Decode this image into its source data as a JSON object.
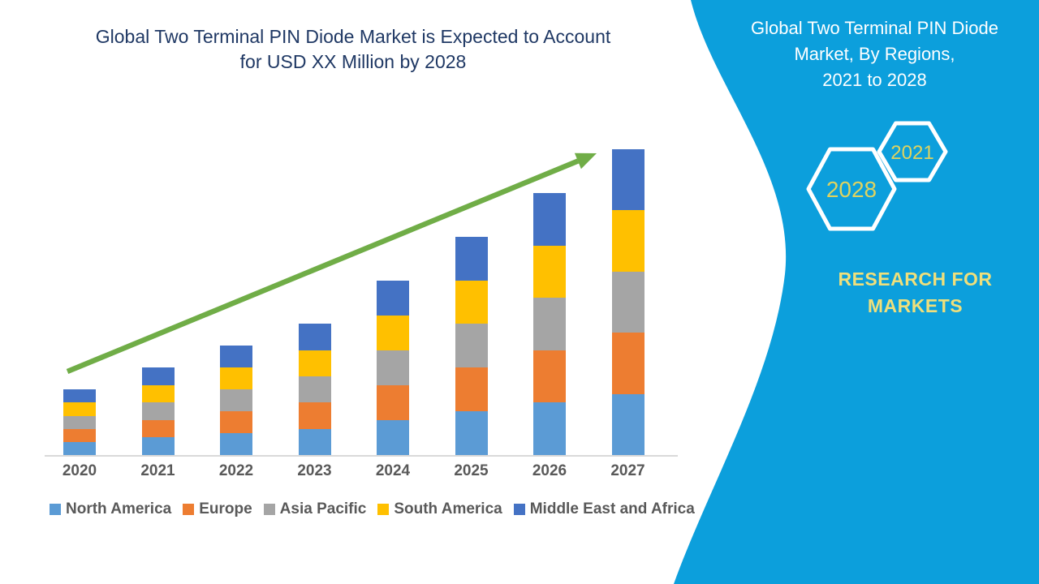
{
  "main": {
    "title_lines": [
      "Global Two Terminal PIN Diode Market is Expected to Account",
      "for USD XX Million by 2028"
    ]
  },
  "chart_data": {
    "type": "bar",
    "stacked": true,
    "title": "Global Two Terminal PIN Diode Market is Expected to Account for USD XX Million by 2028",
    "categories": [
      "2020",
      "2021",
      "2022",
      "2023",
      "2024",
      "2025",
      "2026",
      "2027"
    ],
    "series": [
      {
        "name": "North America",
        "color": "#5B9BD5",
        "values": [
          1.5,
          2,
          2.5,
          3,
          4,
          5,
          6,
          7
        ]
      },
      {
        "name": "Europe",
        "color": "#ED7D31",
        "values": [
          1.5,
          2,
          2.5,
          3,
          4,
          5,
          6,
          7
        ]
      },
      {
        "name": "Asia Pacific",
        "color": "#A5A5A5",
        "values": [
          1.5,
          2,
          2.5,
          3,
          4,
          5,
          6,
          7
        ]
      },
      {
        "name": "South America",
        "color": "#FFC000",
        "values": [
          1.5,
          2,
          2.5,
          3,
          4,
          5,
          6,
          7
        ]
      },
      {
        "name": "Middle East and Africa",
        "color": "#4472C4",
        "values": [
          1.5,
          2,
          2.5,
          3,
          4,
          5,
          6,
          7
        ]
      }
    ],
    "totals": [
      7.5,
      10,
      12.5,
      15,
      20,
      25,
      30,
      35
    ],
    "values_note": "relative units estimated from bar heights; source chart shows no y-axis labels or gridlines",
    "xlabel": "",
    "ylabel": "",
    "ylim": [
      0,
      35
    ],
    "grid": false,
    "legend_position": "bottom",
    "trend_arrow": {
      "present": true,
      "direction": "up-right",
      "color": "#70AD47"
    }
  },
  "side_panel": {
    "title_lines": [
      "Global Two Terminal PIN Diode",
      "Market, By Regions,",
      "2021 to 2028"
    ],
    "hexagons": [
      {
        "label": "2028"
      },
      {
        "label": "2021"
      }
    ],
    "brand_lines": [
      "RESEARCH FOR",
      "MARKETS"
    ]
  },
  "colors": {
    "panel_blue": "#0C9FDC",
    "panel_text_white": "#FFFFFF",
    "title_navy": "#1F3864",
    "axis_text_gray": "#595959",
    "axis_line_gray": "#D9D9D9",
    "arrow_green": "#70AD47",
    "hex_outline_white": "#FFFFFF",
    "hex_year_yellow": "#DFD35F",
    "brand_yellow": "#EFDF7B"
  }
}
